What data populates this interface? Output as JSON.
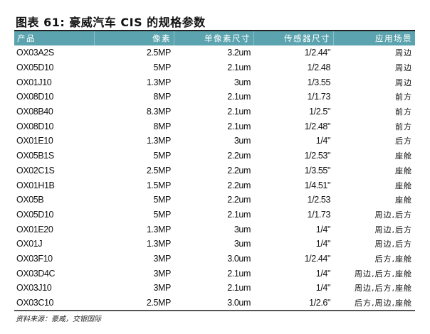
{
  "title": "图表 61: 豪威汽车 CIS 的规格参数",
  "table": {
    "headers": [
      "产品",
      "像素",
      "单像素尺寸",
      "传感器尺寸",
      "应用场景"
    ],
    "rows": [
      [
        "OX03A2S",
        "2.5MP",
        "3.2um",
        "1/2.44\"",
        "周边"
      ],
      [
        "OX05D10",
        "5MP",
        "2.1um",
        "1/2.48",
        "周边"
      ],
      [
        "OX01J10",
        "1.3MP",
        "3um",
        "1/3.55",
        "周边"
      ],
      [
        "OX08D10",
        "8MP",
        "2.1um",
        "1/1.73",
        "前方"
      ],
      [
        "OX08B40",
        "8.3MP",
        "2.1um",
        "1/2.5\"",
        "前方"
      ],
      [
        "OX08D10",
        "8MP",
        "2.1um",
        "1/2.48\"",
        "前方"
      ],
      [
        "OX01E10",
        "1.3MP",
        "3um",
        "1/4\"",
        "后方"
      ],
      [
        "OX05B1S",
        "5MP",
        "2.2um",
        "1/2.53\"",
        "座舱"
      ],
      [
        "OX02C1S",
        "2.5MP",
        "2.2um",
        "1/3.55\"",
        "座舱"
      ],
      [
        "OX01H1B",
        "1.5MP",
        "2.2um",
        "1/4.51\"",
        "座舱"
      ],
      [
        "OX05B",
        "5MP",
        "2.2um",
        "1/2.53",
        "座舱"
      ],
      [
        "OX05D10",
        "5MP",
        "2.1um",
        "1/1.73",
        "周边,后方"
      ],
      [
        "OX01E20",
        "1.3MP",
        "3um",
        "1/4\"",
        "周边,后方"
      ],
      [
        "OX01J",
        "1.3MP",
        "3um",
        "1/4\"",
        "周边,后方"
      ],
      [
        "OX03F10",
        "3MP",
        "3.0um",
        "1/2.44\"",
        "后方,座舱"
      ],
      [
        "OX03D4C",
        "3MP",
        "2.1um",
        "1/4\"",
        "周边,后方,座舱"
      ],
      [
        "OX03J10",
        "3MP",
        "2.1um",
        "1/4\"",
        "周边,后方,座舱"
      ],
      [
        "OX03C10",
        "2.5MP",
        "3.0um",
        "1/2.6\"",
        "后方,周边,座舱"
      ]
    ]
  },
  "source": "资料来源：豪威，交银国际",
  "colors": {
    "header_bg": "#5ba3ae",
    "header_text": "#ffffff"
  }
}
